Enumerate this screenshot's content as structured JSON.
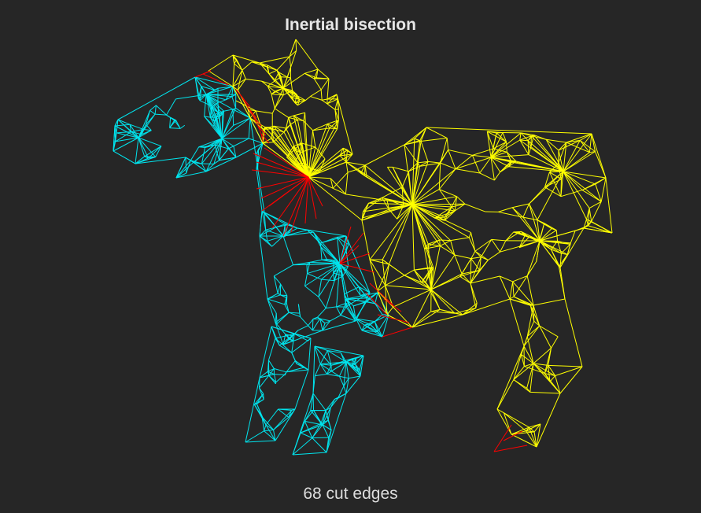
{
  "title": "Inertial bisection",
  "caption": "68 cut edges",
  "colors": {
    "background": "#262626",
    "partition_a": "#00e5ee",
    "partition_b": "#ffff00",
    "cut_edges": "#ff0000"
  }
}
